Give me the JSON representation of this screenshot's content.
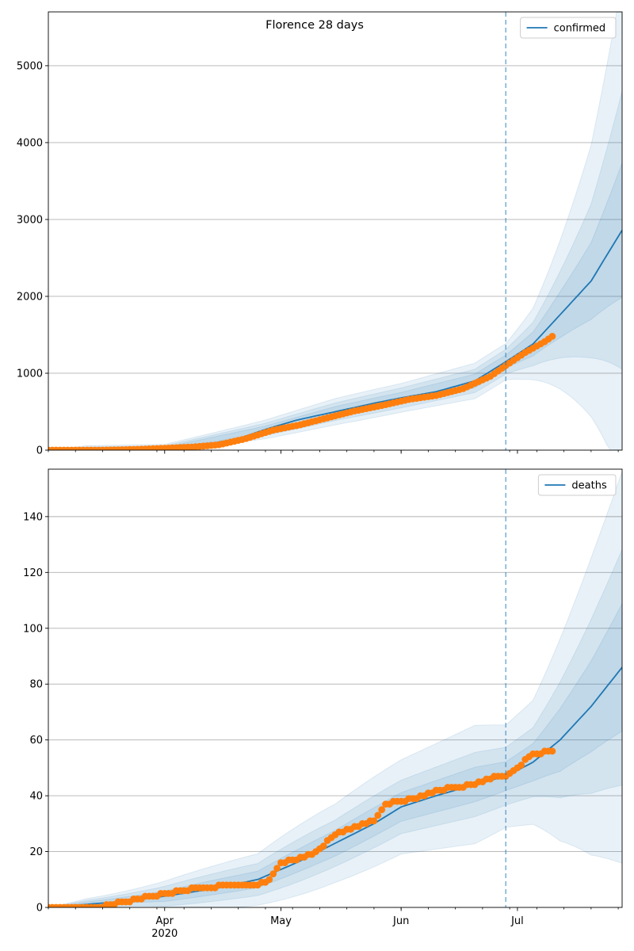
{
  "title": "Florence 28 days",
  "chart_data": [
    {
      "type": "line",
      "title": "Florence 28 days",
      "legend": [
        "confirmed"
      ],
      "legend_position": "top-right",
      "grid": "y",
      "xlim": [
        "2020-03-02",
        "2020-07-28"
      ],
      "ylim": [
        0,
        5700
      ],
      "yticks": [
        0,
        1000,
        2000,
        3000,
        4000,
        5000
      ],
      "xticks": [
        {
          "date": "2020-04-01",
          "label": "Apr",
          "sublabel": "2020"
        },
        {
          "date": "2020-05-01",
          "label": "May",
          "sublabel": ""
        },
        {
          "date": "2020-06-01",
          "label": "Jun",
          "sublabel": ""
        },
        {
          "date": "2020-07-01",
          "label": "Jul",
          "sublabel": ""
        }
      ],
      "forecast_start": "2020-06-28",
      "series": [
        {
          "name": "confirmed",
          "kind": "median",
          "x": [
            "2020-03-02",
            "2020-03-16",
            "2020-03-25",
            "2020-04-01",
            "2020-04-10",
            "2020-04-20",
            "2020-04-27",
            "2020-05-05",
            "2020-05-15",
            "2020-05-25",
            "2020-06-01",
            "2020-06-10",
            "2020-06-20",
            "2020-06-28",
            "2020-07-05",
            "2020-07-12",
            "2020-07-20",
            "2020-07-28"
          ],
          "y": [
            0,
            0,
            5,
            20,
            60,
            150,
            270,
            390,
            500,
            610,
            680,
            760,
            900,
            1150,
            1380,
            1760,
            2200,
            2860
          ]
        },
        {
          "name": "",
          "kind": "observed",
          "x": [
            "2020-03-02",
            "2020-03-16",
            "2020-03-25",
            "2020-04-01",
            "2020-04-08",
            "2020-04-15",
            "2020-04-22",
            "2020-04-29",
            "2020-05-06",
            "2020-05-13",
            "2020-05-20",
            "2020-05-27",
            "2020-06-03",
            "2020-06-10",
            "2020-06-17",
            "2020-06-24",
            "2020-06-28",
            "2020-07-03",
            "2020-07-08",
            "2020-07-10"
          ],
          "y": [
            0,
            0,
            10,
            25,
            40,
            70,
            150,
            260,
            330,
            420,
            510,
            580,
            660,
            710,
            800,
            960,
            1100,
            1270,
            1410,
            1480
          ]
        }
      ],
      "bands": {
        "x": [
          "2020-03-02",
          "2020-04-01",
          "2020-04-27",
          "2020-05-15",
          "2020-06-01",
          "2020-06-20",
          "2020-06-28",
          "2020-07-05",
          "2020-07-12",
          "2020-07-20",
          "2020-07-28"
        ],
        "median": [
          0,
          20,
          270,
          500,
          680,
          900,
          1150,
          1380,
          1760,
          2200,
          2860
        ],
        "rel_halfwidth": [
          [
            0,
            0.08,
            0.1,
            0.1,
            0.08,
            0.08,
            0.06,
            0.1,
            0.16,
            0.22,
            0.3
          ],
          [
            0,
            0.14,
            0.17,
            0.16,
            0.14,
            0.13,
            0.11,
            0.18,
            0.3,
            0.44,
            0.62
          ],
          [
            0,
            0.22,
            0.26,
            0.24,
            0.2,
            0.2,
            0.16,
            0.3,
            0.52,
            0.78,
            1.12
          ]
        ]
      }
    },
    {
      "type": "line",
      "title": "",
      "legend": [
        "deaths"
      ],
      "legend_position": "top-right",
      "grid": "y",
      "xlim": [
        "2020-03-02",
        "2020-07-28"
      ],
      "ylim": [
        0,
        157
      ],
      "yticks": [
        0,
        20,
        40,
        60,
        80,
        100,
        120,
        140
      ],
      "xticks": [
        {
          "date": "2020-04-01",
          "label": "Apr",
          "sublabel": "2020"
        },
        {
          "date": "2020-05-01",
          "label": "May",
          "sublabel": ""
        },
        {
          "date": "2020-06-01",
          "label": "Jun",
          "sublabel": ""
        },
        {
          "date": "2020-07-01",
          "label": "Jul",
          "sublabel": ""
        }
      ],
      "forecast_start": "2020-06-28",
      "series": [
        {
          "name": "deaths",
          "kind": "median",
          "x": [
            "2020-03-02",
            "2020-03-20",
            "2020-04-01",
            "2020-04-15",
            "2020-04-25",
            "2020-05-05",
            "2020-05-15",
            "2020-05-25",
            "2020-06-01",
            "2020-06-10",
            "2020-06-20",
            "2020-06-28",
            "2020-07-05",
            "2020-07-12",
            "2020-07-20",
            "2020-07-28"
          ],
          "y": [
            0,
            2,
            4,
            7,
            10,
            16,
            23,
            30,
            36,
            40,
            44,
            47,
            52,
            60,
            72,
            86
          ]
        },
        {
          "name": "",
          "kind": "observed",
          "x": [
            "2020-03-02",
            "2020-03-15",
            "2020-03-25",
            "2020-04-01",
            "2020-04-10",
            "2020-04-20",
            "2020-04-25",
            "2020-04-28",
            "2020-05-01",
            "2020-05-05",
            "2020-05-10",
            "2020-05-15",
            "2020-05-20",
            "2020-05-25",
            "2020-05-28",
            "2020-06-01",
            "2020-06-05",
            "2020-06-10",
            "2020-06-15",
            "2020-06-20",
            "2020-06-25",
            "2020-06-28",
            "2020-07-01",
            "2020-07-05",
            "2020-07-10"
          ],
          "y": [
            0,
            0,
            3,
            5,
            7,
            8,
            8,
            10,
            16,
            17,
            20,
            26,
            29,
            31,
            37,
            38,
            39,
            42,
            43,
            44,
            47,
            47,
            50,
            55,
            56
          ]
        }
      ],
      "bands": {
        "x": [
          "2020-03-02",
          "2020-04-01",
          "2020-04-25",
          "2020-05-15",
          "2020-06-01",
          "2020-06-20",
          "2020-06-28",
          "2020-07-05",
          "2020-07-12",
          "2020-07-20",
          "2020-07-28"
        ],
        "median": [
          0,
          4,
          10,
          23,
          36,
          44,
          47,
          52,
          60,
          72,
          86
        ],
        "rel_halfwidth": [
          [
            0,
            0.35,
            0.25,
            0.18,
            0.13,
            0.13,
            0.1,
            0.12,
            0.18,
            0.22,
            0.26
          ],
          [
            0,
            0.65,
            0.48,
            0.32,
            0.24,
            0.24,
            0.2,
            0.22,
            0.33,
            0.42,
            0.48
          ],
          [
            0,
            1.0,
            0.78,
            0.55,
            0.43,
            0.45,
            0.36,
            0.4,
            0.58,
            0.72,
            0.8
          ]
        ]
      }
    }
  ]
}
